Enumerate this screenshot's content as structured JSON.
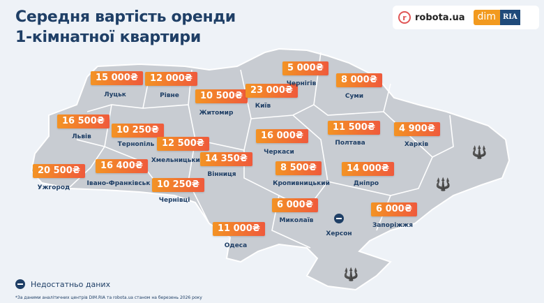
{
  "title_line1": "Середня вартість оренди",
  "title_line2": "1-кімнатної квартири",
  "logos": {
    "robota": "robota.ua",
    "dim": "dim",
    "ria": "RIA"
  },
  "colors": {
    "badge_start": "#f39324",
    "badge_end": "#ef5a3c",
    "map": "#c8ccd2",
    "text": "#1f3f66",
    "background": "#eef2f7"
  },
  "regions": [
    {
      "city": "Луцьк",
      "price": "15 000₴"
    },
    {
      "city": "Рівне",
      "price": "12 000₴"
    },
    {
      "city": "Житомир",
      "price": "10 500₴"
    },
    {
      "city": "Київ",
      "price": "23 000₴"
    },
    {
      "city": "Чернігів",
      "price": "5 000₴"
    },
    {
      "city": "Суми",
      "price": "8 000₴"
    },
    {
      "city": "Львів",
      "price": "16 500₴"
    },
    {
      "city": "Тернопіль",
      "price": "10 250₴"
    },
    {
      "city": "Хмельницький",
      "price": "12 500₴"
    },
    {
      "city": "Черкаси",
      "price": "16 000₴"
    },
    {
      "city": "Полтава",
      "price": "11 500₴"
    },
    {
      "city": "Харків",
      "price": "4 900₴"
    },
    {
      "city": "Вінниця",
      "price": "14 350₴"
    },
    {
      "city": "Кропивницький",
      "price": "8 500₴"
    },
    {
      "city": "Дніпро",
      "price": "14 000₴"
    },
    {
      "city": "Ужгород",
      "price": "20 500₴"
    },
    {
      "city": "Івано-Франківськ",
      "price": "16 400₴"
    },
    {
      "city": "Чернівці",
      "price": "10 250₴"
    },
    {
      "city": "Миколаїв",
      "price": "6 000₴"
    },
    {
      "city": "Запоріжжя",
      "price": "6 000₴"
    },
    {
      "city": "Одеса",
      "price": "11 000₴"
    },
    {
      "city": "Херсон",
      "price": null,
      "status": "no-data"
    }
  ],
  "occupied_icon": "trident-icon",
  "legend": {
    "label": "Недостатньо даних",
    "icon": "minus-circle-icon"
  },
  "footnote": "*За даними аналітичних центрів DIM.RIA та robota.ua станом на березень 2026 року"
}
